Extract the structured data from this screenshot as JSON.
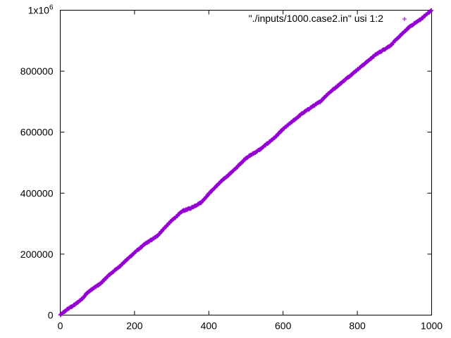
{
  "chart_data": {
    "type": "scatter",
    "title": "",
    "xlabel": "",
    "ylabel": "",
    "xlim": [
      0,
      1000
    ],
    "ylim": [
      0,
      1000000
    ],
    "x_ticks": [
      0,
      200,
      400,
      600,
      800,
      1000
    ],
    "x_tick_labels": [
      "0",
      "200",
      "400",
      "600",
      "800",
      "1000"
    ],
    "y_ticks": [
      0,
      200000,
      400000,
      600000,
      800000,
      1000000
    ],
    "y_tick_labels": [
      "0",
      "200000",
      "400000",
      "600000",
      "800000",
      "1x10"
    ],
    "y_top_exponent": "6",
    "grid": false,
    "legend_position": "top-right",
    "marker": "+",
    "series": [
      {
        "name": "\"./inputs/1000.case2.in\" usi 1:2",
        "color": "#9400d3",
        "shape": {
          "x": [
            0,
            20,
            40,
            60,
            70,
            80,
            110,
            130,
            160,
            200,
            230,
            260,
            280,
            300,
            330,
            350,
            380,
            400,
            430,
            470,
            500,
            540,
            560,
            580,
            600,
            630,
            650,
            680,
            700,
            720,
            750,
            770,
            800,
            820,
            850,
            870,
            890,
            910,
            940,
            970,
            1000
          ],
          "y": [
            0,
            20000,
            35000,
            55000,
            70000,
            80000,
            105000,
            130000,
            160000,
            205000,
            235000,
            258000,
            285000,
            310000,
            342000,
            350000,
            370000,
            398000,
            435000,
            478000,
            515000,
            545000,
            565000,
            585000,
            610000,
            640000,
            660000,
            685000,
            700000,
            725000,
            755000,
            775000,
            805000,
            825000,
            855000,
            870000,
            885000,
            910000,
            945000,
            970000,
            1000000
          ]
        },
        "num_points": 1000
      }
    ]
  }
}
